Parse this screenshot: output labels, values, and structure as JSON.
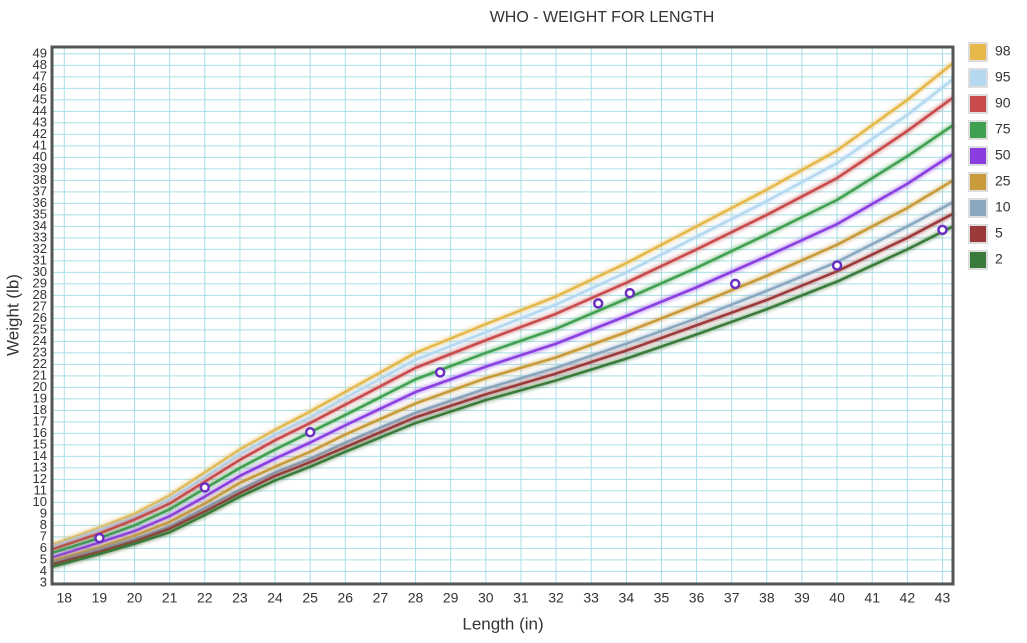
{
  "chart_data": {
    "type": "line",
    "title": "WHO - WEIGHT FOR LENGTH",
    "x_label": "Length (in)",
    "y_label": "Weight (lb)",
    "x": [
      17.65,
      19,
      20,
      21,
      22,
      23,
      24,
      25,
      26,
      28,
      30,
      32,
      34,
      36,
      38,
      40,
      42,
      43.3
    ],
    "series": [
      {
        "name": "98",
        "color": "#e6b84a",
        "values": [
          6.3,
          7.8,
          9.0,
          10.6,
          12.6,
          14.6,
          16.3,
          17.9,
          19.6,
          23.0,
          25.5,
          27.9,
          30.8,
          34.0,
          37.2,
          40.6,
          45.0,
          48.2
        ]
      },
      {
        "name": "95",
        "color": "#b4d8f0",
        "values": [
          6.1,
          7.6,
          8.7,
          10.3,
          12.2,
          14.2,
          15.9,
          17.4,
          19.1,
          22.4,
          24.8,
          27.2,
          30.0,
          33.1,
          36.2,
          39.5,
          43.7,
          46.8
        ]
      },
      {
        "name": "90",
        "color": "#c84a4a",
        "values": [
          5.9,
          7.3,
          8.5,
          9.9,
          11.8,
          13.7,
          15.4,
          16.9,
          18.5,
          21.7,
          24.1,
          26.4,
          29.1,
          32.0,
          35.0,
          38.2,
          42.3,
          45.2
        ]
      },
      {
        "name": "75",
        "color": "#3fa04f",
        "values": [
          5.6,
          6.9,
          8.0,
          9.4,
          11.2,
          13.0,
          14.6,
          16.1,
          17.6,
          20.7,
          23.0,
          25.1,
          27.7,
          30.4,
          33.3,
          36.3,
          40.1,
          42.8
        ]
      },
      {
        "name": "50",
        "color": "#8a3ee0",
        "values": [
          5.2,
          6.5,
          7.5,
          8.8,
          10.5,
          12.3,
          13.8,
          15.2,
          16.7,
          19.6,
          21.8,
          23.8,
          26.2,
          28.7,
          31.4,
          34.2,
          37.7,
          40.3
        ]
      },
      {
        "name": "25",
        "color": "#c89a3a",
        "values": [
          4.9,
          6.1,
          7.1,
          8.3,
          9.9,
          11.7,
          13.1,
          14.4,
          15.9,
          18.6,
          20.8,
          22.6,
          24.8,
          27.2,
          29.7,
          32.4,
          35.6,
          38.0
        ]
      },
      {
        "name": "10",
        "color": "#8aa8c0",
        "values": [
          4.7,
          5.9,
          6.8,
          7.9,
          9.5,
          11.1,
          12.6,
          13.8,
          15.2,
          17.8,
          19.9,
          21.7,
          23.8,
          26.0,
          28.4,
          30.9,
          34.0,
          36.1
        ]
      },
      {
        "name": "5",
        "color": "#9b3a3a",
        "values": [
          4.6,
          5.7,
          6.6,
          7.7,
          9.2,
          10.8,
          12.3,
          13.5,
          14.8,
          17.4,
          19.4,
          21.2,
          23.2,
          25.4,
          27.6,
          30.1,
          33.0,
          35.1
        ]
      },
      {
        "name": "2",
        "color": "#3a7a3a",
        "values": [
          4.4,
          5.5,
          6.4,
          7.4,
          8.9,
          10.5,
          11.9,
          13.1,
          14.4,
          16.9,
          18.9,
          20.6,
          22.5,
          24.6,
          26.8,
          29.2,
          32.0,
          34.0
        ]
      }
    ],
    "points": {
      "type": "scatter",
      "color": "#6a2fc0",
      "x": [
        19.0,
        22.0,
        25.0,
        28.7,
        33.2,
        34.1,
        37.1,
        40.0,
        43.0
      ],
      "values": [
        6.9,
        11.3,
        16.1,
        21.3,
        27.3,
        28.2,
        29.0,
        30.6,
        33.7
      ]
    },
    "xlim": [
      17.65,
      43.3
    ],
    "ylim": [
      2.9,
      49.6
    ],
    "xticks": [
      18,
      19,
      20,
      21,
      22,
      23,
      24,
      25,
      26,
      27,
      28,
      29,
      30,
      31,
      32,
      33,
      34,
      35,
      36,
      37,
      38,
      39,
      40,
      41,
      42,
      43
    ],
    "yticks": [
      3,
      4,
      5,
      6,
      7,
      8,
      9,
      10,
      11,
      12,
      13,
      14,
      15,
      16,
      17,
      18,
      19,
      20,
      21,
      22,
      23,
      24,
      25,
      26,
      27,
      28,
      29,
      30,
      31,
      32,
      33,
      34,
      35,
      36,
      37,
      38,
      39,
      40,
      41,
      42,
      43,
      44,
      45,
      46,
      47,
      48,
      49
    ],
    "grid": true,
    "legend": "right"
  }
}
